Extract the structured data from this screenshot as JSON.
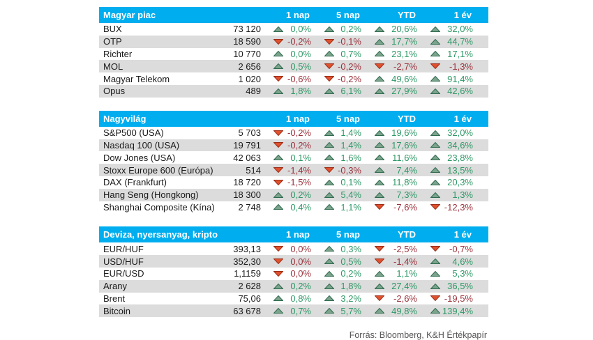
{
  "footer": {
    "source": "Forrás: Bloomberg, K&H Értékpapír"
  },
  "colors": {
    "header_bg": "#00AEEF",
    "header_text": "#FFFFFF",
    "row_alt_bg": "#DCDCDC",
    "positive_text": "#2E9966",
    "negative_text": "#9B313B",
    "up_triangle_fill": "#7CA38B",
    "up_triangle_stroke": "#2F6B50",
    "down_triangle_fill": "#E0512D",
    "down_triangle_stroke": "#9C2D17"
  },
  "chart_data": [
    {
      "type": "table",
      "title": "Magyar piac",
      "columns": [
        "1 nap",
        "5 nap",
        "YTD",
        "1 év"
      ],
      "rows": [
        {
          "name": "BUX",
          "value": "73 120",
          "changes": [
            {
              "dir": "up",
              "pct": "0,0%"
            },
            {
              "dir": "up",
              "pct": "0,2%"
            },
            {
              "dir": "up",
              "pct": "20,6%"
            },
            {
              "dir": "up",
              "pct": "32,0%"
            }
          ]
        },
        {
          "name": "OTP",
          "value": "18 590",
          "changes": [
            {
              "dir": "down",
              "pct": "-0,2%"
            },
            {
              "dir": "down",
              "pct": "-0,1%"
            },
            {
              "dir": "up",
              "pct": "17,7%"
            },
            {
              "dir": "up",
              "pct": "44,7%"
            }
          ]
        },
        {
          "name": "Richter",
          "value": "10 770",
          "changes": [
            {
              "dir": "up",
              "pct": "0,0%"
            },
            {
              "dir": "up",
              "pct": "0,7%"
            },
            {
              "dir": "up",
              "pct": "23,1%"
            },
            {
              "dir": "up",
              "pct": "17,1%"
            }
          ]
        },
        {
          "name": "MOL",
          "value": "2 656",
          "changes": [
            {
              "dir": "up",
              "pct": "0,5%"
            },
            {
              "dir": "down",
              "pct": "-0,2%"
            },
            {
              "dir": "down",
              "pct": "-2,7%"
            },
            {
              "dir": "down",
              "pct": "-1,3%"
            }
          ]
        },
        {
          "name": "Magyar Telekom",
          "value": "1 020",
          "changes": [
            {
              "dir": "down",
              "pct": "-0,6%"
            },
            {
              "dir": "down",
              "pct": "-0,2%"
            },
            {
              "dir": "up",
              "pct": "49,6%"
            },
            {
              "dir": "up",
              "pct": "91,4%"
            }
          ]
        },
        {
          "name": "Opus",
          "value": "489",
          "changes": [
            {
              "dir": "up",
              "pct": "1,8%"
            },
            {
              "dir": "up",
              "pct": "6,1%"
            },
            {
              "dir": "up",
              "pct": "27,9%"
            },
            {
              "dir": "up",
              "pct": "42,6%"
            }
          ]
        }
      ]
    },
    {
      "type": "table",
      "title": "Nagyvilág",
      "columns": [
        "1 nap",
        "5 nap",
        "YTD",
        "1 év"
      ],
      "rows": [
        {
          "name": "S&P500 (USA)",
          "value": "5 703",
          "changes": [
            {
              "dir": "down",
              "pct": "-0,2%"
            },
            {
              "dir": "up",
              "pct": "1,4%"
            },
            {
              "dir": "up",
              "pct": "19,6%"
            },
            {
              "dir": "up",
              "pct": "32,0%"
            }
          ]
        },
        {
          "name": "Nasdaq 100 (USA)",
          "value": "19 791",
          "changes": [
            {
              "dir": "down",
              "pct": "-0,2%"
            },
            {
              "dir": "up",
              "pct": "1,4%"
            },
            {
              "dir": "up",
              "pct": "17,6%"
            },
            {
              "dir": "up",
              "pct": "34,6%"
            }
          ]
        },
        {
          "name": "Dow Jones (USA)",
          "value": "42 063",
          "changes": [
            {
              "dir": "up",
              "pct": "0,1%"
            },
            {
              "dir": "up",
              "pct": "1,6%"
            },
            {
              "dir": "up",
              "pct": "11,6%"
            },
            {
              "dir": "up",
              "pct": "23,8%"
            }
          ]
        },
        {
          "name": "Stoxx Europe 600 (Európa)",
          "value": "514",
          "changes": [
            {
              "dir": "down",
              "pct": "-1,4%"
            },
            {
              "dir": "down",
              "pct": "-0,3%"
            },
            {
              "dir": "up",
              "pct": "7,4%"
            },
            {
              "dir": "up",
              "pct": "13,5%"
            }
          ]
        },
        {
          "name": "DAX (Frankfurt)",
          "value": "18 720",
          "changes": [
            {
              "dir": "down",
              "pct": "-1,5%"
            },
            {
              "dir": "up",
              "pct": "0,1%"
            },
            {
              "dir": "up",
              "pct": "11,8%"
            },
            {
              "dir": "up",
              "pct": "20,3%"
            }
          ]
        },
        {
          "name": "Hang Seng (Hongkong)",
          "value": "18 300",
          "changes": [
            {
              "dir": "up",
              "pct": "0,2%"
            },
            {
              "dir": "up",
              "pct": "5,4%"
            },
            {
              "dir": "up",
              "pct": "7,3%"
            },
            {
              "dir": "up",
              "pct": "1,3%"
            }
          ]
        },
        {
          "name": "Shanghai Composite (Kína)",
          "value": "2 748",
          "changes": [
            {
              "dir": "up",
              "pct": "0,4%"
            },
            {
              "dir": "up",
              "pct": "1,1%"
            },
            {
              "dir": "down",
              "pct": "-7,6%"
            },
            {
              "dir": "down",
              "pct": "-12,3%"
            }
          ]
        }
      ]
    },
    {
      "type": "table",
      "title": "Deviza, nyersanyag, kripto",
      "columns": [
        "1 nap",
        "5 nap",
        "YTD",
        "1 év"
      ],
      "rows": [
        {
          "name": "EUR/HUF",
          "value": "393,13",
          "changes": [
            {
              "dir": "down",
              "pct": "0,0%"
            },
            {
              "dir": "up",
              "pct": "0,3%"
            },
            {
              "dir": "down",
              "pct": "-2,5%"
            },
            {
              "dir": "down",
              "pct": "-0,7%"
            }
          ]
        },
        {
          "name": "USD/HUF",
          "value": "352,30",
          "changes": [
            {
              "dir": "down",
              "pct": "0,0%"
            },
            {
              "dir": "up",
              "pct": "0,5%"
            },
            {
              "dir": "down",
              "pct": "-1,4%"
            },
            {
              "dir": "up",
              "pct": "4,6%"
            }
          ]
        },
        {
          "name": "EUR/USD",
          "value": "1,1159",
          "changes": [
            {
              "dir": "down",
              "pct": "0,0%"
            },
            {
              "dir": "up",
              "pct": "0,2%"
            },
            {
              "dir": "up",
              "pct": "1,1%"
            },
            {
              "dir": "up",
              "pct": "5,3%"
            }
          ]
        },
        {
          "name": "Arany",
          "value": "2 628",
          "changes": [
            {
              "dir": "up",
              "pct": "0,2%"
            },
            {
              "dir": "up",
              "pct": "1,8%"
            },
            {
              "dir": "up",
              "pct": "27,4%"
            },
            {
              "dir": "up",
              "pct": "36,5%"
            }
          ]
        },
        {
          "name": "Brent",
          "value": "75,06",
          "changes": [
            {
              "dir": "up",
              "pct": "0,8%"
            },
            {
              "dir": "up",
              "pct": "3,2%"
            },
            {
              "dir": "down",
              "pct": "-2,6%"
            },
            {
              "dir": "down",
              "pct": "-19,5%"
            }
          ]
        },
        {
          "name": "Bitcoin",
          "value": "63 678",
          "changes": [
            {
              "dir": "up",
              "pct": "0,7%"
            },
            {
              "dir": "up",
              "pct": "5,7%"
            },
            {
              "dir": "up",
              "pct": "49,8%"
            },
            {
              "dir": "up",
              "pct": "139,4%"
            }
          ]
        }
      ]
    }
  ]
}
